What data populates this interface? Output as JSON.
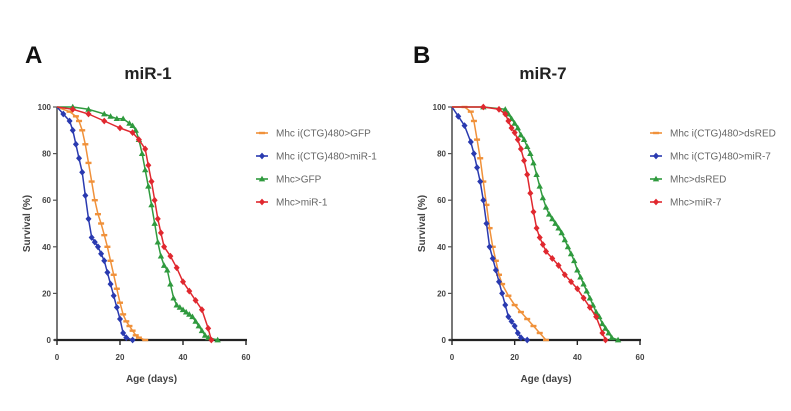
{
  "chart_data": [
    {
      "type": "line",
      "panel": "A",
      "title": "miR-1",
      "xlabel": "Age (days)",
      "ylabel": "Survival (%)",
      "xlim": [
        0,
        60
      ],
      "ylim": [
        0,
        100
      ],
      "xticks": [
        "0",
        "20",
        "40",
        "60"
      ],
      "yticks": [
        "0",
        "20",
        "40",
        "60",
        "80",
        "100"
      ],
      "grid": false,
      "legend_position": "right",
      "series": [
        {
          "name": "Mhc i(CTG)480>GFP",
          "color": "#f0913a",
          "x": [
            0,
            4,
            6,
            7,
            8,
            9,
            10,
            11,
            12,
            13,
            14,
            15,
            16,
            17,
            18,
            19,
            20,
            21,
            22,
            23,
            24,
            25,
            26,
            28
          ],
          "y": [
            100,
            98,
            96,
            94,
            90,
            84,
            76,
            68,
            60,
            54,
            50,
            45,
            40,
            34,
            28,
            22,
            16,
            11,
            8,
            6,
            4,
            2,
            1,
            0
          ]
        },
        {
          "name": "Mhc i(CTG)480>miR-1",
          "color": "#2a3ab0",
          "x": [
            0,
            2,
            4,
            5,
            6,
            7,
            8,
            9,
            10,
            11,
            12,
            13,
            14,
            15,
            16,
            17,
            18,
            19,
            20,
            21,
            22,
            24
          ],
          "y": [
            100,
            97,
            94,
            90,
            84,
            78,
            72,
            62,
            52,
            44,
            42,
            40,
            37,
            34,
            29,
            24,
            19,
            14,
            9,
            3,
            1,
            0
          ]
        },
        {
          "name": "Mhc>GFP",
          "color": "#2f9a3e",
          "x": [
            0,
            5,
            10,
            15,
            17,
            19,
            21,
            23,
            24,
            25,
            26,
            27,
            28,
            29,
            30,
            31,
            32,
            33,
            34,
            35,
            36,
            37,
            38,
            39,
            40,
            41,
            42,
            43,
            44,
            45,
            46,
            47,
            48,
            51
          ],
          "y": [
            100,
            100,
            99,
            97,
            96,
            95,
            95,
            93,
            92,
            90,
            86,
            80,
            73,
            66,
            58,
            50,
            42,
            36,
            32,
            30,
            24,
            18,
            15,
            14,
            13,
            12,
            11,
            10,
            8,
            6,
            4,
            2,
            1,
            0
          ]
        },
        {
          "name": "Mhc>miR-1",
          "color": "#e0282f",
          "x": [
            0,
            5,
            10,
            15,
            20,
            24,
            26,
            28,
            29,
            30,
            31,
            32,
            33,
            34,
            36,
            38,
            40,
            42,
            44,
            46,
            48,
            49
          ],
          "y": [
            100,
            99,
            97,
            94,
            91,
            89,
            86,
            82,
            75,
            68,
            60,
            52,
            46,
            40,
            36,
            31,
            25,
            21,
            17,
            13,
            5,
            0
          ]
        }
      ]
    },
    {
      "type": "line",
      "panel": "B",
      "title": "miR-7",
      "xlabel": "Age (days)",
      "ylabel": "Survival (%)",
      "xlim": [
        0,
        60
      ],
      "ylim": [
        0,
        100
      ],
      "xticks": [
        "0",
        "20",
        "40",
        "60"
      ],
      "yticks": [
        "0",
        "20",
        "40",
        "60",
        "80",
        "100"
      ],
      "grid": false,
      "legend_position": "right",
      "series": [
        {
          "name": "Mhc i(CTG)480>dsRED",
          "color": "#f0913a",
          "x": [
            0,
            4,
            6,
            7,
            8,
            9,
            10,
            11,
            12,
            13,
            14,
            15,
            16,
            18,
            20,
            22,
            24,
            26,
            28,
            30
          ],
          "y": [
            100,
            100,
            98,
            94,
            86,
            78,
            68,
            58,
            48,
            40,
            34,
            28,
            24,
            19,
            15,
            12,
            9,
            6,
            3,
            0
          ]
        },
        {
          "name": "Mhc i(CTG)480>miR-7",
          "color": "#2a3ab0",
          "x": [
            0,
            2,
            4,
            6,
            7,
            8,
            9,
            10,
            11,
            12,
            13,
            14,
            15,
            16,
            17,
            18,
            19,
            20,
            21,
            22,
            24
          ],
          "y": [
            100,
            96,
            92,
            85,
            80,
            74,
            68,
            60,
            50,
            40,
            35,
            30,
            25,
            20,
            15,
            10,
            8,
            6,
            3,
            1,
            0
          ]
        },
        {
          "name": "Mhc>dsRED",
          "color": "#2f9a3e",
          "x": [
            0,
            10,
            17,
            18,
            19,
            20,
            21,
            22,
            23,
            24,
            25,
            26,
            27,
            28,
            29,
            30,
            31,
            32,
            33,
            34,
            35,
            36,
            37,
            38,
            39,
            40,
            41,
            42,
            43,
            44,
            45,
            46,
            47,
            48,
            49,
            50,
            51,
            53
          ],
          "y": [
            100,
            100,
            99,
            97,
            95,
            93,
            91,
            88,
            86,
            83,
            80,
            76,
            71,
            66,
            61,
            57,
            54,
            52,
            50,
            48,
            46,
            43,
            40,
            37,
            34,
            30,
            27,
            24,
            21,
            18,
            15,
            12,
            10,
            7,
            5,
            3,
            1,
            0
          ]
        },
        {
          "name": "Mhc>miR-7",
          "color": "#e0282f",
          "x": [
            0,
            10,
            15,
            17,
            18,
            19,
            20,
            21,
            22,
            23,
            24,
            25,
            26,
            27,
            28,
            29,
            30,
            32,
            34,
            36,
            38,
            40,
            42,
            44,
            46,
            48,
            49
          ],
          "y": [
            100,
            100,
            99,
            97,
            94,
            91,
            89,
            86,
            82,
            77,
            71,
            63,
            55,
            48,
            44,
            41,
            38,
            35,
            32,
            28,
            25,
            22,
            18,
            14,
            10,
            3,
            0
          ]
        }
      ]
    }
  ]
}
